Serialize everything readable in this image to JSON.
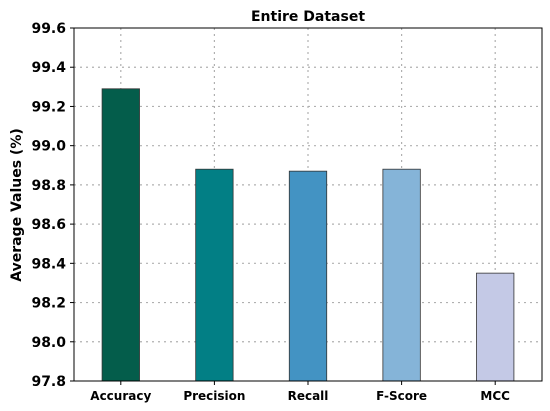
{
  "chart_data": {
    "type": "bar",
    "title": "Entire Dataset",
    "xlabel": "",
    "ylabel": "Average Values  (%)",
    "categories": [
      "Accuracy",
      "Precision",
      "Recall",
      "F-Score",
      "MCC"
    ],
    "values": [
      99.29,
      98.88,
      98.87,
      98.88,
      98.35
    ],
    "colors": [
      "#045d4b",
      "#027f85",
      "#4393c3",
      "#85b4d8",
      "#c4c9e6"
    ],
    "ylim": [
      97.8,
      99.6
    ],
    "yticks": [
      "97.8",
      "98.0",
      "98.2",
      "98.4",
      "98.6",
      "98.8",
      "99.0",
      "99.2",
      "99.4",
      "99.6"
    ],
    "grid": true
  }
}
